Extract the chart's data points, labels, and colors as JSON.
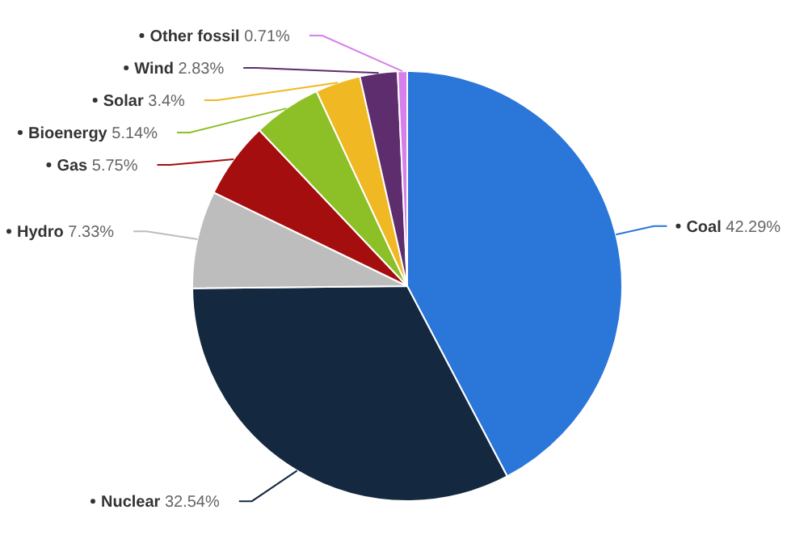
{
  "chart_data": {
    "type": "pie",
    "categories": [
      "Coal",
      "Nuclear",
      "Hydro",
      "Gas",
      "Bioenergy",
      "Solar",
      "Wind",
      "Other fossil"
    ],
    "values": [
      42.29,
      32.54,
      7.33,
      5.75,
      5.14,
      3.4,
      2.83,
      0.71
    ],
    "value_labels": [
      "42.29%",
      "32.54%",
      "7.33%",
      "5.75%",
      "5.14%",
      "3.4%",
      "2.83%",
      "0.71%"
    ],
    "colors": [
      "#2b76d9",
      "#14283f",
      "#bdbdbd",
      "#a50e0e",
      "#8dbf27",
      "#f0b823",
      "#5e2d6e",
      "#d77fea"
    ]
  }
}
